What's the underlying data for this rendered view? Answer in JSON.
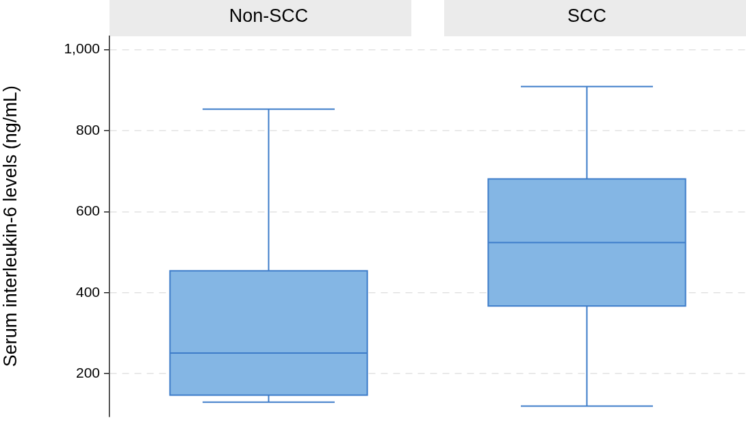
{
  "chart_data": {
    "type": "box",
    "ylabel": "Serum interleukin-6 levels (ng/mL)",
    "categories": [
      "Non-SCC",
      "SCC"
    ],
    "color": "#84b6e4",
    "boxes": [
      {
        "low": 130,
        "q1": 147,
        "median": 251,
        "q3": 454,
        "high": 853
      },
      {
        "low": 120,
        "q1": 367,
        "median": 524,
        "q3": 681,
        "high": 909
      }
    ],
    "ylim": [
      95,
      1033
    ],
    "yticks": [
      {
        "value": 200,
        "label": "200"
      },
      {
        "value": 400,
        "label": "400"
      },
      {
        "value": 600,
        "label": "600"
      },
      {
        "value": 800,
        "label": "800"
      },
      {
        "value": 1000,
        "label": "1,000"
      }
    ],
    "grid": "y"
  }
}
